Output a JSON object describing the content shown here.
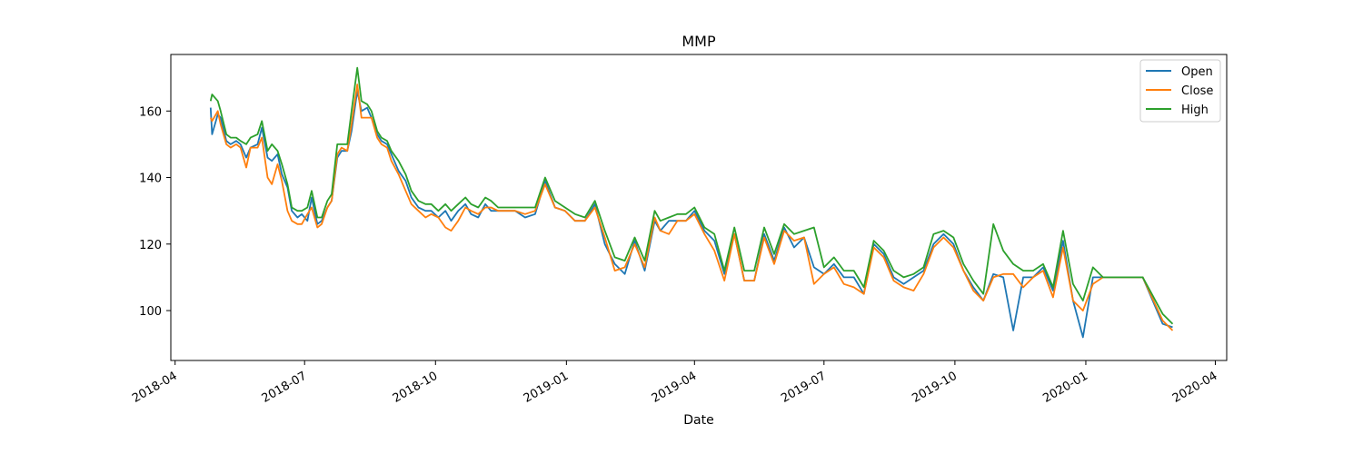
{
  "chart_data": {
    "type": "line",
    "title": "MMP",
    "xlabel": "Date",
    "ylabel": "",
    "xlim": [
      "2018-03-29",
      "2020-04-09"
    ],
    "ylim": [
      85,
      177
    ],
    "grid": false,
    "legend_position": "top-right",
    "x_ticks": [
      "2018-04",
      "2018-07",
      "2018-10",
      "2019-01",
      "2019-04",
      "2019-07",
      "2019-10",
      "2020-01",
      "2020-04"
    ],
    "y_ticks": [
      100,
      120,
      140,
      160
    ],
    "x": [
      "2018-04-26",
      "2018-04-27",
      "2018-05-01",
      "2018-05-03",
      "2018-05-07",
      "2018-05-10",
      "2018-05-14",
      "2018-05-17",
      "2018-05-21",
      "2018-05-24",
      "2018-05-29",
      "2018-06-01",
      "2018-06-05",
      "2018-06-08",
      "2018-06-12",
      "2018-06-15",
      "2018-06-19",
      "2018-06-22",
      "2018-06-26",
      "2018-06-29",
      "2018-07-03",
      "2018-07-06",
      "2018-07-10",
      "2018-07-13",
      "2018-07-17",
      "2018-07-20",
      "2018-07-24",
      "2018-07-27",
      "2018-07-31",
      "2018-08-03",
      "2018-08-07",
      "2018-08-10",
      "2018-08-14",
      "2018-08-17",
      "2018-08-21",
      "2018-08-24",
      "2018-08-28",
      "2018-08-31",
      "2018-09-05",
      "2018-09-10",
      "2018-09-14",
      "2018-09-19",
      "2018-09-24",
      "2018-09-28",
      "2018-10-03",
      "2018-10-08",
      "2018-10-12",
      "2018-10-17",
      "2018-10-22",
      "2018-10-26",
      "2018-10-31",
      "2018-11-05",
      "2018-11-09",
      "2018-11-14",
      "2018-11-19",
      "2018-11-26",
      "2018-12-03",
      "2018-12-10",
      "2018-12-17",
      "2018-12-24",
      "2018-12-31",
      "2019-01-07",
      "2019-01-14",
      "2019-01-21",
      "2019-01-28",
      "2019-02-04",
      "2019-02-11",
      "2019-02-18",
      "2019-02-25",
      "2019-03-04",
      "2019-03-08",
      "2019-03-14",
      "2019-03-20",
      "2019-03-26",
      "2019-04-01",
      "2019-04-08",
      "2019-04-15",
      "2019-04-22",
      "2019-04-29",
      "2019-05-06",
      "2019-05-13",
      "2019-05-20",
      "2019-05-27",
      "2019-06-03",
      "2019-06-10",
      "2019-06-17",
      "2019-06-24",
      "2019-07-01",
      "2019-07-08",
      "2019-07-15",
      "2019-07-22",
      "2019-07-29",
      "2019-08-05",
      "2019-08-12",
      "2019-08-19",
      "2019-08-26",
      "2019-09-02",
      "2019-09-09",
      "2019-09-16",
      "2019-09-23",
      "2019-09-30",
      "2019-10-07",
      "2019-10-14",
      "2019-10-21",
      "2019-10-28",
      "2019-11-04",
      "2019-11-11",
      "2019-11-18",
      "2019-11-25",
      "2019-12-02",
      "2019-12-09",
      "2019-12-16",
      "2019-12-23",
      "2019-12-30",
      "2020-01-06",
      "2020-01-13",
      "2020-01-27",
      "2020-02-10",
      "2020-02-24",
      "2020-03-02"
    ],
    "series": [
      {
        "name": "Open",
        "color": "#1f77b4",
        "values": [
          161,
          153,
          159,
          158,
          151,
          150,
          151,
          150,
          146,
          149,
          150,
          155,
          146,
          145,
          147,
          141,
          137,
          130,
          128,
          129,
          127,
          134,
          126,
          127,
          131,
          133,
          146,
          148,
          148,
          154,
          166,
          160,
          161,
          158,
          153,
          151,
          150,
          147,
          142,
          139,
          134,
          131,
          130,
          130,
          128,
          130,
          127,
          130,
          132,
          129,
          128,
          132,
          130,
          130,
          130,
          130,
          128,
          129,
          139,
          131,
          130,
          127,
          127,
          132,
          120,
          114,
          111,
          121,
          112,
          127,
          124,
          127,
          127,
          127,
          130,
          124,
          121,
          111,
          123,
          109,
          109,
          123,
          115,
          125,
          119,
          122,
          113,
          111,
          114,
          110,
          110,
          105,
          120,
          117,
          110,
          108,
          110,
          112,
          120,
          123,
          120,
          112,
          107,
          103,
          111,
          110,
          94,
          110,
          110,
          113,
          106,
          121,
          103,
          92,
          110,
          110,
          110,
          110,
          96,
          95
        ]
      },
      {
        "name": "Close",
        "color": "#ff7f0e",
        "values": [
          158,
          157,
          160,
          156,
          150,
          149,
          150,
          149,
          143,
          149,
          149,
          152,
          140,
          138,
          144,
          139,
          130,
          127,
          126,
          126,
          129,
          131,
          125,
          126,
          131,
          133,
          147,
          149,
          148,
          156,
          168,
          158,
          158,
          158,
          152,
          150,
          149,
          145,
          141,
          136,
          132,
          130,
          128,
          129,
          128,
          125,
          124,
          127,
          131,
          130,
          129,
          131,
          131,
          130,
          130,
          130,
          129,
          130,
          138,
          131,
          130,
          127,
          127,
          131,
          122,
          112,
          113,
          120,
          113,
          128,
          124,
          123,
          127,
          127,
          129,
          123,
          118,
          109,
          123,
          109,
          109,
          122,
          114,
          124,
          121,
          122,
          108,
          111,
          113,
          108,
          107,
          105,
          119,
          116,
          109,
          107,
          106,
          111,
          119,
          122,
          119,
          112,
          106,
          103,
          110,
          111,
          111,
          107,
          110,
          112,
          104,
          119,
          103,
          100,
          108,
          110,
          110,
          110,
          97,
          94
        ]
      },
      {
        "name": "High",
        "color": "#2ca02c",
        "values": [
          163,
          165,
          163,
          160,
          153,
          152,
          152,
          151,
          150,
          152,
          153,
          157,
          148,
          150,
          148,
          144,
          138,
          131,
          130,
          130,
          131,
          136,
          128,
          128,
          133,
          135,
          150,
          150,
          150,
          160,
          173,
          163,
          162,
          160,
          154,
          152,
          151,
          148,
          145,
          141,
          136,
          133,
          132,
          132,
          130,
          132,
          130,
          132,
          134,
          132,
          131,
          134,
          133,
          131,
          131,
          131,
          131,
          131,
          140,
          133,
          131,
          129,
          128,
          133,
          124,
          116,
          115,
          122,
          115,
          130,
          127,
          128,
          129,
          129,
          131,
          125,
          123,
          112,
          125,
          112,
          112,
          125,
          117,
          126,
          123,
          124,
          125,
          113,
          116,
          112,
          112,
          107,
          121,
          118,
          112,
          110,
          111,
          113,
          123,
          124,
          122,
          114,
          109,
          105,
          126,
          118,
          114,
          112,
          112,
          114,
          107,
          124,
          108,
          103,
          113,
          110,
          110,
          110,
          99,
          96
        ]
      }
    ]
  }
}
